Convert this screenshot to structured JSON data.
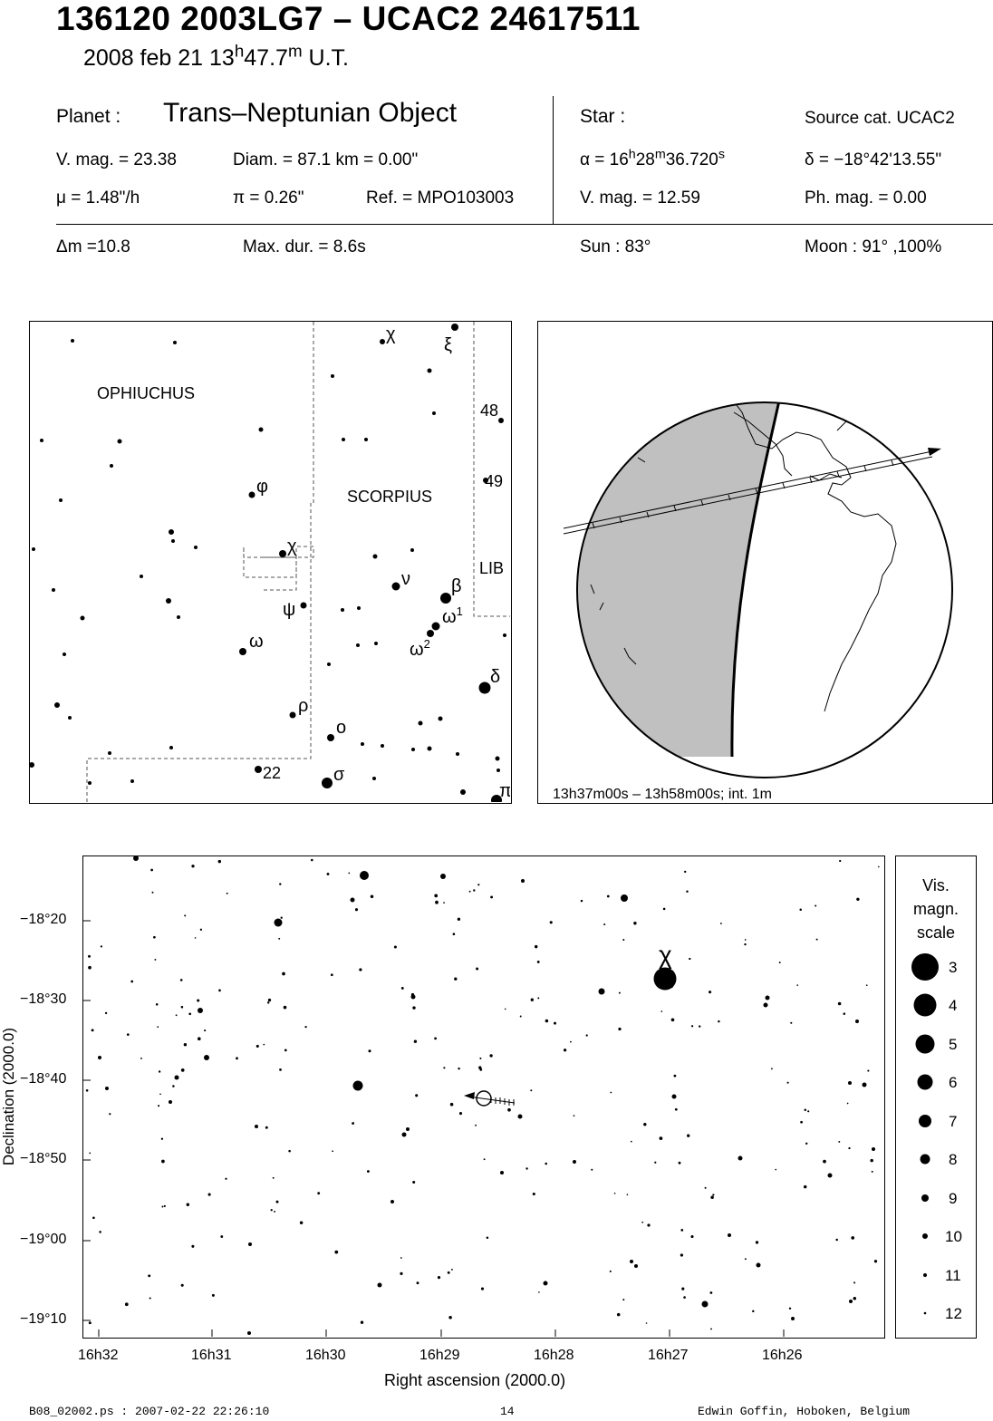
{
  "header": {
    "title": "136120 2003LG7  –  UCAC2 24617511",
    "date_text": "2008 feb 21  13",
    "date_h": "h",
    "date_min": "47.7",
    "date_m": "m",
    "date_ut": " U.T."
  },
  "planet_info": {
    "planet_label": "Planet :",
    "planet_type": "Trans–Neptunian Object",
    "vmag": "V. mag. = 23.38",
    "diam": "Diam. = 87.1 km = 0.00\"",
    "mu": "μ =  1.48\"/h",
    "pi": "π =  0.26\"",
    "ref": "Ref. = MPO103003",
    "dm": "Δm =10.8",
    "maxdur": "Max. dur. = 8.6s"
  },
  "star_info": {
    "star_label": "Star :",
    "source": "Source cat.  UCAC2",
    "alpha_pre": "α = 16",
    "alpha_h": "h",
    "alpha_mid": "28",
    "alpha_m": "m",
    "alpha_sec": "36.720",
    "alpha_s": "s",
    "delta": "δ = −18°42'13.55\"",
    "vmag": "V. mag. = 12.59",
    "phmag": "Ph. mag. =  0.00",
    "sun": "Sun :  83°",
    "moon": "Moon :  91° ,100%"
  },
  "constellation_map": {
    "labels": {
      "ophiuchus": "OPHIUCHUS",
      "scorpius": "SCORPIUS",
      "lib": "LIB",
      "n48": "48",
      "n49": "49",
      "n22": "22",
      "chi_top": "χ",
      "xi": "ξ",
      "phi": "φ",
      "chi": "χ",
      "nu": "ν",
      "beta": "β",
      "psi": "ψ",
      "omega1": "ω",
      "omega1_sup": "1",
      "omega2": "ω",
      "omega2_sup": "2",
      "omega": "ω",
      "delta": "δ",
      "rho": "ρ",
      "omicron": "o",
      "sigma": "σ",
      "pi": "π"
    }
  },
  "globe": {
    "caption": "13h37m00s – 13h58m00s; int.  1m"
  },
  "star_chart": {
    "chi_label": "χ",
    "xlabel": "Right ascension (2000.0)",
    "ylabel": "Declination (2000.0)",
    "xticks": [
      "16h32",
      "16h31",
      "16h30",
      "16h29",
      "16h28",
      "16h27",
      "16h26"
    ],
    "yticks": [
      "−18°20",
      "−18°30",
      "−18°40",
      "−18°50",
      "−19°00",
      "−19°10"
    ]
  },
  "mag_scale": {
    "title1": "Vis.",
    "title2": "magn.",
    "title3": "scale",
    "entries": [
      "3",
      "4",
      "5",
      "6",
      "7",
      "8",
      "9",
      "10",
      "11",
      "12"
    ]
  },
  "footer": {
    "left": "B08_02002.ps : 2007-02-22 22:26:10",
    "page": "14",
    "right": "Edwin Goffin, Hoboken, Belgium"
  }
}
